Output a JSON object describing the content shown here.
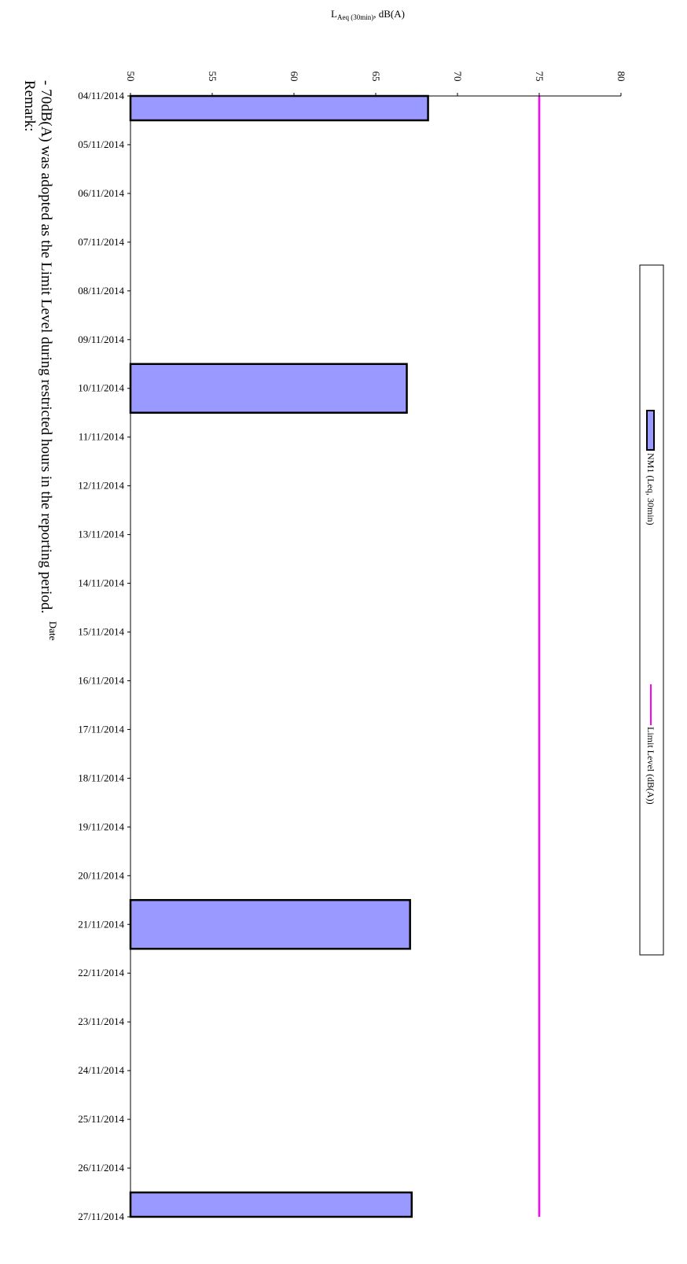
{
  "chart_data": {
    "type": "bar",
    "orientation": "rotated-90-clockwise",
    "ylabel": {
      "base": "L",
      "sub": "Aeq (30min)",
      "suffix": ", dB(A)"
    },
    "xlabel": "Date",
    "ylim": [
      50,
      80
    ],
    "yticks": [
      50,
      55,
      60,
      65,
      70,
      75,
      80
    ],
    "categories": [
      "04/11/2014",
      "05/11/2014",
      "06/11/2014",
      "07/11/2014",
      "08/11/2014",
      "09/11/2014",
      "10/11/2014",
      "11/11/2014",
      "12/11/2014",
      "13/11/2014",
      "14/11/2014",
      "15/11/2014",
      "16/11/2014",
      "17/11/2014",
      "18/11/2014",
      "19/11/2014",
      "20/11/2014",
      "21/11/2014",
      "22/11/2014",
      "23/11/2014",
      "24/11/2014",
      "25/11/2014",
      "26/11/2014",
      "27/11/2014"
    ],
    "series": [
      {
        "name": "NM1 (Leq, 30min)",
        "type": "bar",
        "color": "#9999ff",
        "values": [
          68.2,
          null,
          null,
          null,
          null,
          null,
          66.9,
          null,
          null,
          null,
          null,
          null,
          null,
          null,
          null,
          null,
          null,
          67.1,
          null,
          null,
          null,
          null,
          null,
          67.2
        ]
      },
      {
        "name": "Limit Level (dB(A))",
        "type": "line",
        "color": "#ff00ff",
        "value": 75
      }
    ],
    "legend": "right",
    "grid": false
  },
  "remark": {
    "title": "Remark:",
    "line": "- 70dB(A) was adopted as the Limit Level during restricted hours in the reporting period."
  }
}
